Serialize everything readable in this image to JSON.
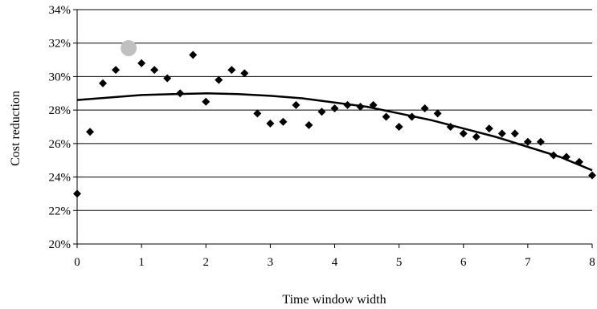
{
  "chart_data": {
    "type": "scatter",
    "xlabel": "Time window width",
    "ylabel": "Cost reduction",
    "xlim": [
      0,
      8
    ],
    "ylim": [
      20,
      34
    ],
    "x_ticks": [
      0,
      1,
      2,
      3,
      4,
      5,
      6,
      7,
      8
    ],
    "y_ticks": [
      20,
      22,
      24,
      26,
      28,
      30,
      32,
      34
    ],
    "y_tick_labels": [
      "20%",
      "22%",
      "24%",
      "26%",
      "28%",
      "30%",
      "32%",
      "34%"
    ],
    "grid": "horizontal",
    "series": [
      {
        "marker": "diamond",
        "color": "#000000",
        "points": [
          [
            0.0,
            23.0
          ],
          [
            0.2,
            26.7
          ],
          [
            0.4,
            29.6
          ],
          [
            0.6,
            30.4
          ],
          [
            1.0,
            30.8
          ],
          [
            1.2,
            30.4
          ],
          [
            1.4,
            29.9
          ],
          [
            1.6,
            29.0
          ],
          [
            1.8,
            31.3
          ],
          [
            2.0,
            28.5
          ],
          [
            2.2,
            29.8
          ],
          [
            2.4,
            30.4
          ],
          [
            2.6,
            30.2
          ],
          [
            2.8,
            27.8
          ],
          [
            3.0,
            27.2
          ],
          [
            3.2,
            27.3
          ],
          [
            3.4,
            28.3
          ],
          [
            3.6,
            27.1
          ],
          [
            3.8,
            27.9
          ],
          [
            4.0,
            28.1
          ],
          [
            4.2,
            28.3
          ],
          [
            4.4,
            28.2
          ],
          [
            4.6,
            28.3
          ],
          [
            4.8,
            27.6
          ],
          [
            5.0,
            27.0
          ],
          [
            5.2,
            27.6
          ],
          [
            5.4,
            28.1
          ],
          [
            5.6,
            27.8
          ],
          [
            5.8,
            27.0
          ],
          [
            6.0,
            26.6
          ],
          [
            6.2,
            26.4
          ],
          [
            6.4,
            26.9
          ],
          [
            6.6,
            26.6
          ],
          [
            6.8,
            26.6
          ],
          [
            7.0,
            26.1
          ],
          [
            7.2,
            26.1
          ],
          [
            7.4,
            25.3
          ],
          [
            7.6,
            25.2
          ],
          [
            7.8,
            24.9
          ],
          [
            8.0,
            24.1
          ]
        ]
      },
      {
        "marker": "circle",
        "color": "#c0c0c0",
        "points": [
          [
            0.8,
            31.7
          ]
        ]
      },
      {
        "type": "line",
        "color": "#000000",
        "points": [
          [
            0.0,
            28.6
          ],
          [
            0.5,
            28.75
          ],
          [
            1.0,
            28.9
          ],
          [
            1.5,
            28.95
          ],
          [
            2.0,
            29.0
          ],
          [
            2.5,
            28.95
          ],
          [
            3.0,
            28.85
          ],
          [
            3.5,
            28.7
          ],
          [
            4.0,
            28.45
          ],
          [
            4.5,
            28.2
          ],
          [
            5.0,
            27.8
          ],
          [
            5.5,
            27.4
          ],
          [
            6.0,
            26.9
          ],
          [
            6.5,
            26.4
          ],
          [
            7.0,
            25.8
          ],
          [
            7.5,
            25.2
          ],
          [
            8.0,
            24.4
          ]
        ]
      }
    ]
  }
}
